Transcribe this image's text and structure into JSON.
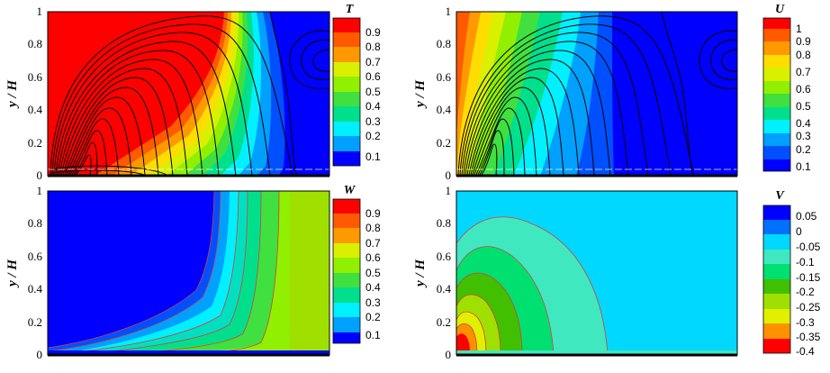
{
  "chart_data": [
    {
      "type": "heatmap",
      "panel": "top-left",
      "ylabel": "y / H",
      "yticks": [
        "0",
        "0.2",
        "0.4",
        "0.6",
        "0.8",
        "1"
      ],
      "ylim": [
        0,
        1
      ],
      "colorbar": {
        "title": "T",
        "ticks": [
          "0.9",
          "0.8",
          "0.7",
          "0.6",
          "0.5",
          "0.4",
          "0.3",
          "0.2",
          "0.1"
        ],
        "colors": [
          "#ff0000",
          "#ff5a00",
          "#ff9900",
          "#ffdd00",
          "#d9f000",
          "#90f000",
          "#40e040",
          "#00e08c",
          "#00f0ff",
          "#00a0ff",
          "#0050ff",
          "#0000ff"
        ]
      },
      "streamlines": true
    },
    {
      "type": "heatmap",
      "panel": "top-right",
      "ylabel": "y / H",
      "yticks": [
        "0",
        "0.2",
        "0.4",
        "0.6",
        "0.8",
        "1"
      ],
      "ylim": [
        0,
        1
      ],
      "colorbar": {
        "title": "U",
        "ticks": [
          "1",
          "0.9",
          "0.8",
          "0.7",
          "0.6",
          "0.5",
          "0.4",
          "0.3",
          "0.2",
          "0.1"
        ],
        "colors": [
          "#ff0000",
          "#ff5a00",
          "#ff9900",
          "#ffdd00",
          "#d9f000",
          "#90f000",
          "#40e040",
          "#00e08c",
          "#00f0ff",
          "#00a0ff",
          "#0050ff",
          "#0000ff"
        ]
      },
      "streamlines": true
    },
    {
      "type": "heatmap",
      "panel": "bottom-left",
      "ylabel": "y / H",
      "yticks": [
        "0",
        "0.2",
        "0.4",
        "0.6",
        "0.8",
        "1"
      ],
      "ylim": [
        0,
        1
      ],
      "colorbar": {
        "title": "W",
        "ticks": [
          "0.9",
          "0.8",
          "0.7",
          "0.6",
          "0.5",
          "0.4",
          "0.3",
          "0.2",
          "0.1"
        ],
        "colors": [
          "#ff0000",
          "#ff5a00",
          "#ff9900",
          "#ffdd00",
          "#d9f000",
          "#90f000",
          "#40e040",
          "#00e08c",
          "#00f0ff",
          "#00a0ff",
          "#0050ff",
          "#0000ff"
        ]
      },
      "streamlines": false
    },
    {
      "type": "heatmap",
      "panel": "bottom-right",
      "ylabel": "y / H",
      "yticks": [
        "0",
        "0.2",
        "0.4",
        "0.6",
        "0.8",
        "1"
      ],
      "ylim": [
        0,
        1
      ],
      "colorbar": {
        "title": "V",
        "ticks": [
          "0.05",
          "0",
          "-0.05",
          "-0.1",
          "-0.15",
          "-0.2",
          "-0.25",
          "-0.3",
          "-0.35",
          "-0.4"
        ],
        "colors": [
          "#0000ff",
          "#0070ff",
          "#00d8ff",
          "#40e8c0",
          "#00e070",
          "#40c000",
          "#a0e000",
          "#e0f000",
          "#ff9000",
          "#ff0000"
        ]
      },
      "streamlines": false
    }
  ]
}
